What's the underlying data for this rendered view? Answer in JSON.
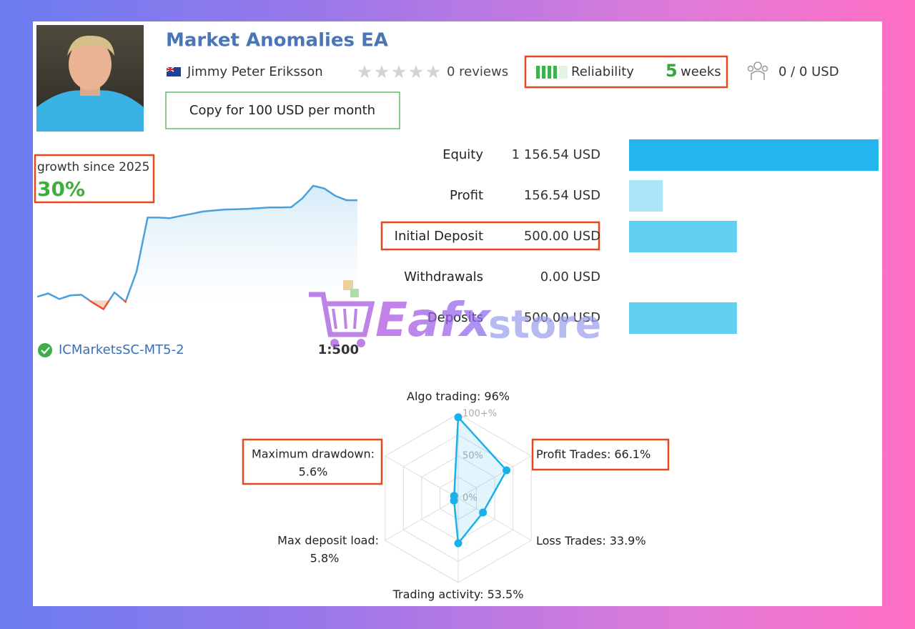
{
  "header": {
    "title": "Market Anomalies EA",
    "author": "Jimmy Peter Eriksson",
    "reviews": "0 reviews",
    "reliability": {
      "label": "Reliability",
      "value": "5",
      "unit": "weeks"
    },
    "subscribers": "0 / 0 USD",
    "copy_button": "Copy for 100 USD per month"
  },
  "growth": {
    "label": "growth since 2025",
    "value": "30%",
    "broker": "ICMarketsSC-MT5-2",
    "leverage": "1:500"
  },
  "watermark": {
    "brand": "Eafx",
    "suffix": "store"
  },
  "chart_data": [
    {
      "type": "line",
      "values": [
        1.1,
        2.1,
        0.4,
        1.5,
        1.7,
        -0.6,
        -2.6,
        2.4,
        -0.4,
        8.6,
        24.8,
        24.8,
        24.6,
        25.3,
        25.9,
        26.6,
        26.9,
        27.2,
        27.3,
        27.4,
        27.6,
        27.8,
        27.8,
        27.9,
        30.5,
        34.3,
        33.5,
        31.3,
        30.0,
        30.0
      ],
      "ylim": [
        -4,
        36
      ],
      "color": "#4aa0dc",
      "negative_color": "#e5532f"
    },
    {
      "type": "bar",
      "orientation": "horizontal",
      "categories": [
        "Equity",
        "Profit",
        "Initial Deposit",
        "Withdrawals",
        "Deposits"
      ],
      "values": [
        1156.54,
        156.54,
        500,
        0,
        500
      ],
      "value_labels": [
        "1 156.54 USD",
        "156.54 USD",
        "500.00 USD",
        "0.00 USD",
        "500.00 USD"
      ],
      "xlim": [
        0,
        1160
      ],
      "colors": [
        "#23b6ec",
        "#ade3f8",
        "#61cff2",
        "#61cff2",
        "#61cff2"
      ]
    },
    {
      "type": "radar",
      "categories": [
        "Algo trading:",
        "Profit Trades:",
        "Loss Trades:",
        "Trading activity:",
        "Max deposit load:",
        "Maximum drawdown:"
      ],
      "values": [
        96,
        66.1,
        33.9,
        53.5,
        5.8,
        5.6
      ],
      "value_labels": [
        "96%",
        "66.1%",
        "33.9%",
        "53.5%",
        "5.8%",
        "5.6%"
      ],
      "rlim": [
        0,
        100
      ],
      "rticks": [
        {
          "value": 0,
          "label": "0%"
        },
        {
          "value": 50,
          "label": "50%"
        },
        {
          "value": 100,
          "label": "100+%"
        }
      ],
      "color": "#1ab0ea"
    }
  ]
}
